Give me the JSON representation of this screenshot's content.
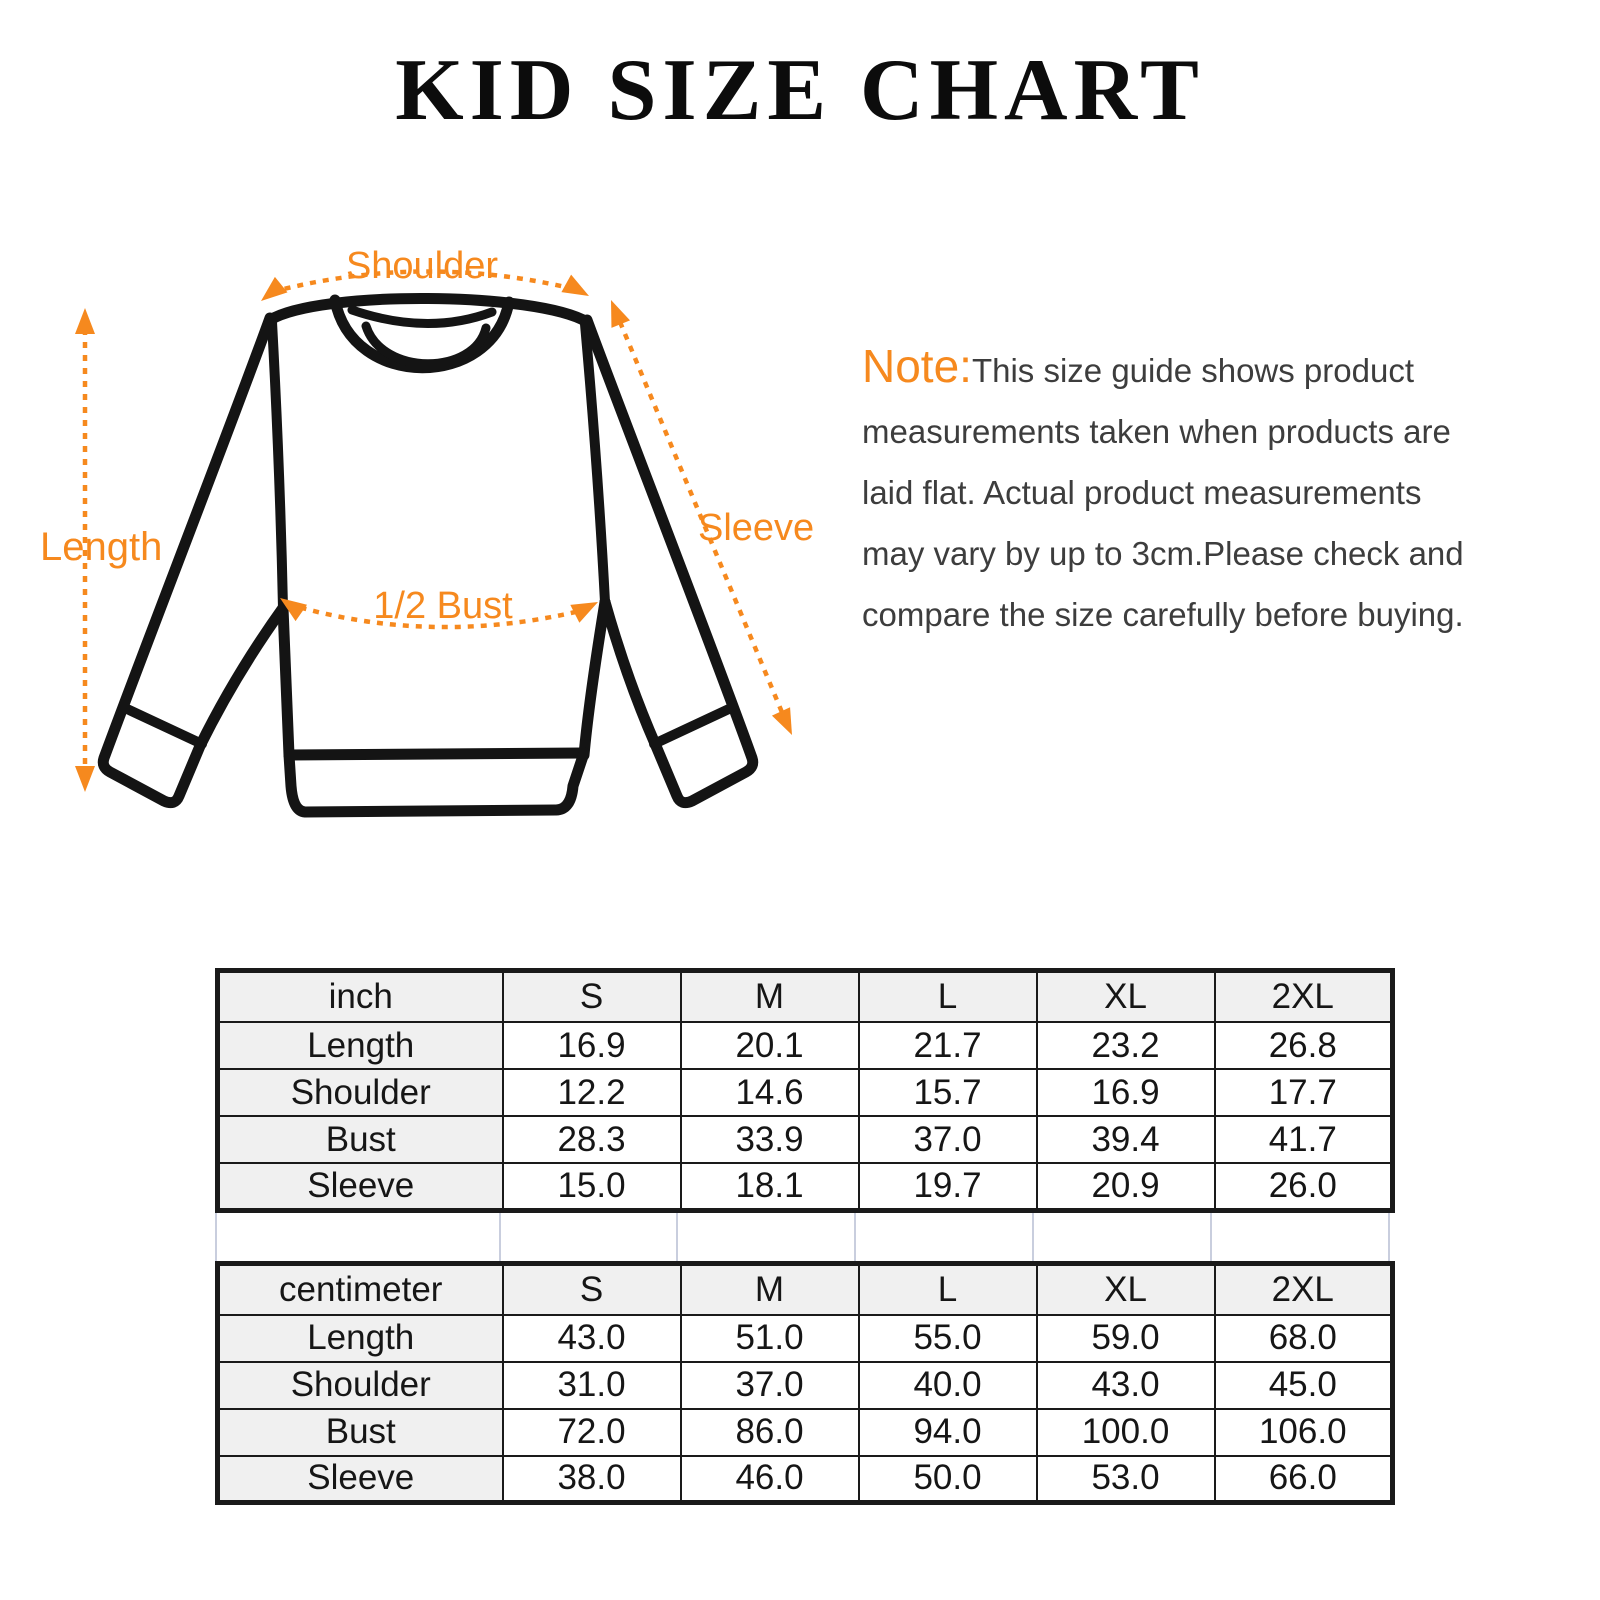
{
  "title": "KID SIZE CHART",
  "diagram": {
    "labels": {
      "shoulder": "Shoulder",
      "length": "Length",
      "sleeve": "Sleeve",
      "bust": "1/2 Bust"
    },
    "accent_color": "#f6891e",
    "outline_color": "#141414"
  },
  "note": {
    "prefix": "Note:",
    "line1": "This size guide shows product",
    "line2": "measurements taken when products are",
    "line3": "laid flat. Actual product measurements",
    "line4": "may vary by up to 3cm.Please check and",
    "line5": "compare the size carefully before buying."
  },
  "tables": {
    "inch": {
      "header": [
        "inch",
        "S",
        "M",
        "L",
        "XL",
        "2XL"
      ],
      "rows": [
        {
          "label": "Length",
          "values": [
            "16.9",
            "20.1",
            "21.7",
            "23.2",
            "26.8"
          ]
        },
        {
          "label": "Shoulder",
          "values": [
            "12.2",
            "14.6",
            "15.7",
            "16.9",
            "17.7"
          ]
        },
        {
          "label": "Bust",
          "values": [
            "28.3",
            "33.9",
            "37.0",
            "39.4",
            "41.7"
          ]
        },
        {
          "label": "Sleeve",
          "values": [
            "15.0",
            "18.1",
            "19.7",
            "20.9",
            "26.0"
          ]
        }
      ]
    },
    "centimeter": {
      "header": [
        "centimeter",
        "S",
        "M",
        "L",
        "XL",
        "2XL"
      ],
      "rows": [
        {
          "label": "Length",
          "values": [
            "43.0",
            "51.0",
            "55.0",
            "59.0",
            "68.0"
          ]
        },
        {
          "label": "Shoulder",
          "values": [
            "31.0",
            "37.0",
            "40.0",
            "43.0",
            "45.0"
          ]
        },
        {
          "label": "Bust",
          "values": [
            "72.0",
            "86.0",
            "94.0",
            "100.0",
            "106.0"
          ]
        },
        {
          "label": "Sleeve",
          "values": [
            "38.0",
            "46.0",
            "50.0",
            "53.0",
            "66.0"
          ]
        }
      ]
    }
  }
}
